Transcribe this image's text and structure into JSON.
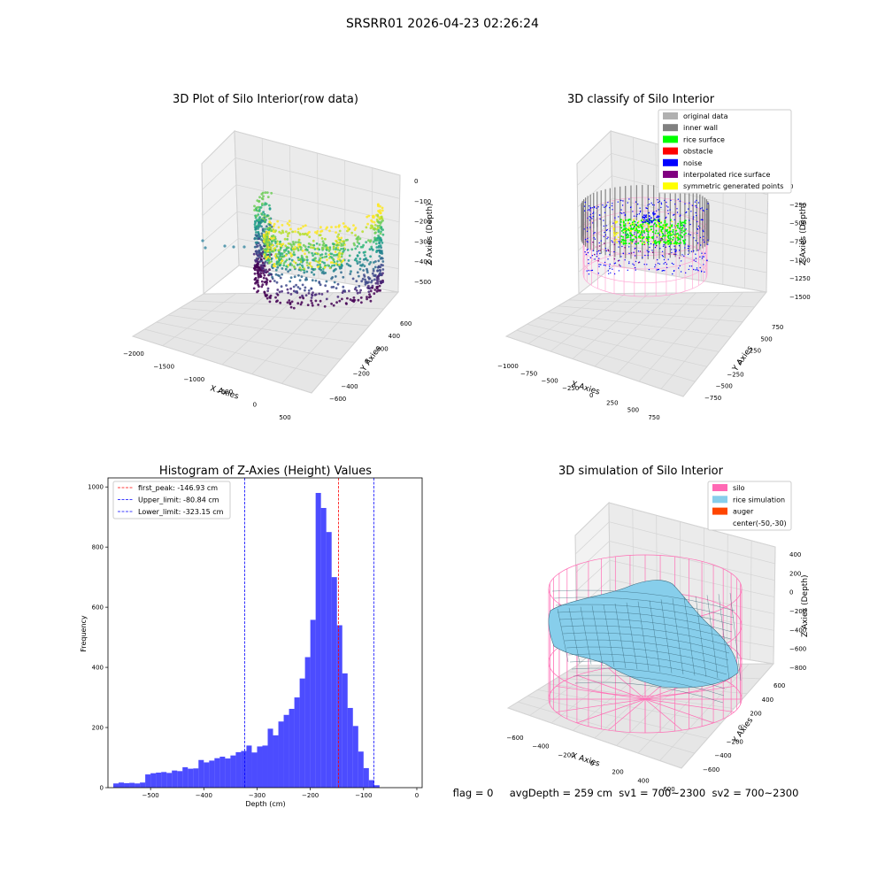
{
  "suptitle": "SRSRR01 2026-04-23 02:26:24",
  "footer": "flag = 0     avgDepth = 259 cm  sv1 = 700~2300  sv2 = 700~2300",
  "colors": {
    "wall_gray": "#808080",
    "rice_green": "#00ff00",
    "obstacle_red": "#ff0000",
    "noise_blue": "#0000ff",
    "interp_purple": "#800080",
    "symmetric_yellow": "#ffff00",
    "original_gray": "#b0b0b0",
    "silo_pink": "#ff69b4",
    "rice_sim": "#87ceeb",
    "auger_orange": "#ff4500",
    "hist_blue": "#0000ff",
    "peak_red": "#ff0000"
  },
  "plot1": {
    "title": "3D Plot of Silo Interior(row data)",
    "xlabel": "X Axies",
    "ylabel": "Y Axies",
    "zlabel": "Z Axies (Depth)",
    "xticks": [
      "−2000",
      "−1500",
      "−1000",
      "−500",
      "0",
      "500"
    ],
    "yticks": [
      "−600",
      "−400",
      "−200",
      "0",
      "200",
      "400",
      "600"
    ],
    "zticks": [
      "0",
      "−100",
      "−200",
      "−300",
      "−400",
      "−500"
    ],
    "colormap": "viridis"
  },
  "plot2": {
    "title": "3D classify of Silo Interior",
    "xlabel": "X Axies",
    "ylabel": "Y Axies",
    "zlabel": "Z Axies (Depth)",
    "xticks": [
      "−1000",
      "−750",
      "−500",
      "−250",
      "0",
      "250",
      "500",
      "750"
    ],
    "yticks": [
      "−750",
      "−500",
      "−250",
      "0",
      "250",
      "500",
      "750"
    ],
    "zticks": [
      "0",
      "−250",
      "−500",
      "−750",
      "−1000",
      "−1250",
      "−1500"
    ],
    "legend": [
      {
        "label": "original data",
        "color": "#b0b0b0"
      },
      {
        "label": "inner wall",
        "color": "#808080"
      },
      {
        "label": "rice surface",
        "color": "#00ff00"
      },
      {
        "label": "obstacle",
        "color": "#ff0000"
      },
      {
        "label": "noise",
        "color": "#0000ff"
      },
      {
        "label": "interpolated rice surface",
        "color": "#800080"
      },
      {
        "label": "symmetric generated points",
        "color": "#ffff00"
      }
    ]
  },
  "plot4": {
    "title": "3D simulation of Silo Interior",
    "xlabel": "X Axies",
    "ylabel": "Y Axies",
    "zlabel": "Z Axies (Depth)",
    "xticks": [
      "−600",
      "−400",
      "−200",
      "0",
      "200",
      "400",
      "600"
    ],
    "yticks": [
      "−600",
      "−400",
      "−200",
      "0",
      "200",
      "400",
      "600"
    ],
    "zticks": [
      "400",
      "200",
      "0",
      "−200",
      "−400",
      "−600",
      "−800"
    ],
    "legend": [
      {
        "label": "silo",
        "color": "#ff69b4"
      },
      {
        "label": "rice simulation",
        "color": "#87ceeb"
      },
      {
        "label": "auger",
        "color": "#ff4500"
      },
      {
        "label": "center(-50,-30)",
        "color": ""
      }
    ]
  },
  "chart_data": {
    "type": "bar",
    "title": "Histogram of Z-Axies (Height) Values",
    "xlabel": "Depth (cm)",
    "ylabel": "Frequency",
    "xlim": [
      -580,
      10
    ],
    "ylim": [
      0,
      1030
    ],
    "xticks": [
      -500,
      -400,
      -300,
      -200,
      -100,
      0
    ],
    "xtick_labels": [
      "−500",
      "−400",
      "−300",
      "−200",
      "−100",
      "0"
    ],
    "yticks": [
      0,
      200,
      400,
      600,
      800,
      1000
    ],
    "bin_width": 10,
    "bin_starts": [
      -570,
      -560,
      -550,
      -540,
      -530,
      -520,
      -510,
      -500,
      -490,
      -480,
      -470,
      -460,
      -450,
      -440,
      -430,
      -420,
      -410,
      -400,
      -390,
      -380,
      -370,
      -360,
      -350,
      -340,
      -330,
      -320,
      -310,
      -300,
      -290,
      -280,
      -270,
      -260,
      -250,
      -240,
      -230,
      -220,
      -210,
      -200,
      -190,
      -180,
      -170,
      -160,
      -150,
      -140,
      -130,
      -120,
      -110,
      -100,
      -90,
      -80,
      -70,
      -60,
      -50,
      -40,
      -30,
      -20,
      -10
    ],
    "values": [
      14,
      17,
      15,
      16,
      14,
      17,
      44,
      48,
      50,
      52,
      49,
      57,
      55,
      68,
      63,
      64,
      92,
      84,
      90,
      98,
      103,
      97,
      107,
      118,
      122,
      140,
      117,
      137,
      140,
      196,
      174,
      220,
      242,
      262,
      300,
      363,
      434,
      558,
      980,
      930,
      850,
      700,
      540,
      380,
      265,
      205,
      120,
      65,
      25,
      8,
      0,
      0,
      0,
      0,
      0,
      0,
      0
    ],
    "vlines": [
      {
        "x": -146.93,
        "color": "#ff0000",
        "label": "first_peak: -146.93 cm"
      },
      {
        "x": -80.84,
        "color": "#0000ff",
        "label": "Upper_limit: -80.84 cm"
      },
      {
        "x": -323.15,
        "color": "#0000ff",
        "label": "Lower_limit: -323.15 cm"
      }
    ],
    "legend_position": "top-left",
    "grid": false
  }
}
